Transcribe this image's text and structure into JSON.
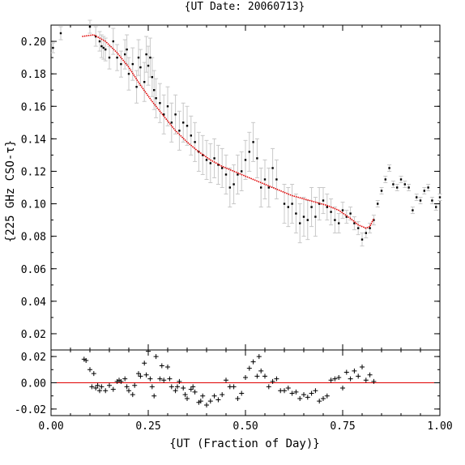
{
  "chart_data": [
    {
      "type": "scatter",
      "title": "{UT Date: 20060713}",
      "xlabel": "",
      "ylabel": "{225 GHz CSO-τ}",
      "xlim": [
        0.0,
        1.0
      ],
      "ylim": [
        0.01,
        0.21
      ],
      "yticks": [
        "0.02",
        "0.04",
        "0.06",
        "0.08",
        "0.10",
        "0.12",
        "0.14",
        "0.16",
        "0.18",
        "0.20"
      ],
      "grid": false,
      "series": [
        {
          "kind": "points-with-errorbars",
          "x": [
            0.005,
            0.025,
            0.1,
            0.115,
            0.125,
            0.13,
            0.135,
            0.14,
            0.15,
            0.16,
            0.17,
            0.18,
            0.19,
            0.195,
            0.2,
            0.21,
            0.22,
            0.225,
            0.23,
            0.24,
            0.245,
            0.25,
            0.255,
            0.26,
            0.265,
            0.27,
            0.28,
            0.29,
            0.3,
            0.31,
            0.32,
            0.33,
            0.34,
            0.35,
            0.36,
            0.37,
            0.38,
            0.39,
            0.4,
            0.41,
            0.42,
            0.43,
            0.44,
            0.45,
            0.46,
            0.47,
            0.48,
            0.49,
            0.5,
            0.51,
            0.52,
            0.53,
            0.54,
            0.55,
            0.56,
            0.57,
            0.58,
            0.6,
            0.61,
            0.62,
            0.63,
            0.64,
            0.65,
            0.66,
            0.67,
            0.68,
            0.69,
            0.7,
            0.71,
            0.72,
            0.73,
            0.74,
            0.75,
            0.76,
            0.77,
            0.78,
            0.79,
            0.8,
            0.81,
            0.82,
            0.83,
            0.84,
            0.85,
            0.86,
            0.87,
            0.88,
            0.89,
            0.9,
            0.91,
            0.92,
            0.93,
            0.94,
            0.95,
            0.96,
            0.97,
            0.98,
            0.99,
            1.0
          ],
          "y": [
            0.196,
            0.205,
            0.209,
            0.203,
            0.2,
            0.197,
            0.196,
            0.195,
            0.19,
            0.2,
            0.19,
            0.186,
            0.192,
            0.195,
            0.18,
            0.186,
            0.172,
            0.19,
            0.184,
            0.175,
            0.192,
            0.185,
            0.19,
            0.178,
            0.17,
            0.165,
            0.162,
            0.155,
            0.16,
            0.15,
            0.155,
            0.145,
            0.15,
            0.148,
            0.142,
            0.138,
            0.132,
            0.13,
            0.127,
            0.125,
            0.128,
            0.124,
            0.122,
            0.118,
            0.11,
            0.112,
            0.118,
            0.12,
            0.127,
            0.132,
            0.138,
            0.128,
            0.11,
            0.115,
            0.11,
            0.122,
            0.115,
            0.1,
            0.098,
            0.1,
            0.094,
            0.088,
            0.092,
            0.09,
            0.098,
            0.092,
            0.1,
            0.102,
            0.098,
            0.095,
            0.09,
            0.088,
            0.096,
            0.092,
            0.094,
            0.088,
            0.085,
            0.078,
            0.082,
            0.085,
            0.09,
            0.1,
            0.108,
            0.115,
            0.122,
            0.112,
            0.11,
            0.115,
            0.112,
            0.11,
            0.096,
            0.104,
            0.102,
            0.108,
            0.11,
            0.102,
            0.098,
            0.104
          ],
          "yerr": [
            0.003,
            0.004,
            0.004,
            0.006,
            0.006,
            0.007,
            0.007,
            0.007,
            0.007,
            0.008,
            0.008,
            0.008,
            0.009,
            0.009,
            0.01,
            0.01,
            0.01,
            0.011,
            0.011,
            0.012,
            0.011,
            0.012,
            0.012,
            0.012,
            0.012,
            0.012,
            0.012,
            0.012,
            0.012,
            0.012,
            0.012,
            0.012,
            0.012,
            0.012,
            0.012,
            0.012,
            0.012,
            0.012,
            0.012,
            0.012,
            0.012,
            0.012,
            0.012,
            0.012,
            0.012,
            0.012,
            0.012,
            0.012,
            0.012,
            0.012,
            0.012,
            0.012,
            0.012,
            0.012,
            0.012,
            0.012,
            0.012,
            0.012,
            0.012,
            0.012,
            0.012,
            0.012,
            0.012,
            0.012,
            0.012,
            0.012,
            0.01,
            0.008,
            0.008,
            0.008,
            0.008,
            0.006,
            0.005,
            0.004,
            0.004,
            0.004,
            0.004,
            0.004,
            0.003,
            0.003,
            0.003,
            0.002,
            0.002,
            0.002,
            0.002,
            0.002,
            0.002,
            0.002,
            0.002,
            0.002,
            0.002,
            0.002,
            0.002,
            0.002,
            0.002,
            0.002,
            0.002,
            0.002
          ]
        },
        {
          "kind": "fit-line",
          "color": "#e00000",
          "x": [
            0.08,
            0.11,
            0.14,
            0.17,
            0.2,
            0.23,
            0.26,
            0.29,
            0.32,
            0.35,
            0.38,
            0.41,
            0.44,
            0.47,
            0.5,
            0.53,
            0.56,
            0.59,
            0.62,
            0.65,
            0.68,
            0.71,
            0.74,
            0.77,
            0.79,
            0.8,
            0.81,
            0.82,
            0.83
          ],
          "y": [
            0.203,
            0.204,
            0.2,
            0.193,
            0.184,
            0.173,
            0.163,
            0.154,
            0.145,
            0.138,
            0.132,
            0.127,
            0.123,
            0.12,
            0.117,
            0.114,
            0.111,
            0.108,
            0.105,
            0.103,
            0.101,
            0.099,
            0.096,
            0.091,
            0.087,
            0.086,
            0.085,
            0.086,
            0.091
          ]
        }
      ]
    },
    {
      "type": "scatter",
      "title": "",
      "xlabel": "{UT (Fraction of Day)}",
      "ylabel": "",
      "xlim": [
        0.0,
        1.0
      ],
      "ylim": [
        -0.025,
        0.025
      ],
      "xticks": [
        "0.00",
        "0.25",
        "0.50",
        "0.75",
        "1.00"
      ],
      "yticks": [
        "-0.02",
        "0.00",
        "0.02"
      ],
      "grid": false,
      "series": [
        {
          "kind": "residuals",
          "marker": "+",
          "x": [
            0.085,
            0.09,
            0.1,
            0.105,
            0.11,
            0.115,
            0.12,
            0.125,
            0.13,
            0.14,
            0.15,
            0.16,
            0.17,
            0.175,
            0.18,
            0.19,
            0.195,
            0.2,
            0.21,
            0.215,
            0.225,
            0.23,
            0.24,
            0.245,
            0.25,
            0.255,
            0.26,
            0.265,
            0.27,
            0.28,
            0.285,
            0.29,
            0.3,
            0.305,
            0.31,
            0.32,
            0.325,
            0.33,
            0.34,
            0.345,
            0.35,
            0.36,
            0.365,
            0.37,
            0.38,
            0.385,
            0.39,
            0.4,
            0.41,
            0.42,
            0.43,
            0.44,
            0.45,
            0.46,
            0.47,
            0.48,
            0.49,
            0.5,
            0.51,
            0.52,
            0.53,
            0.535,
            0.54,
            0.55,
            0.56,
            0.57,
            0.58,
            0.59,
            0.6,
            0.61,
            0.62,
            0.63,
            0.64,
            0.65,
            0.66,
            0.67,
            0.68,
            0.69,
            0.7,
            0.71,
            0.72,
            0.73,
            0.74,
            0.75,
            0.76,
            0.77,
            0.78,
            0.79,
            0.8,
            0.81,
            0.82,
            0.83
          ],
          "y": [
            0.018,
            0.017,
            0.01,
            -0.003,
            0.007,
            -0.004,
            -0.002,
            -0.006,
            -0.003,
            -0.006,
            -0.002,
            -0.005,
            0.001,
            0.002,
            0.001,
            0.003,
            -0.003,
            -0.006,
            -0.009,
            -0.002,
            0.007,
            0.005,
            0.015,
            0.006,
            0.024,
            0.003,
            -0.003,
            -0.01,
            0.02,
            0.003,
            0.013,
            0.002,
            0.012,
            0.003,
            -0.003,
            -0.006,
            -0.003,
            0.001,
            -0.004,
            -0.009,
            -0.012,
            -0.005,
            -0.003,
            -0.007,
            -0.015,
            -0.014,
            -0.01,
            -0.017,
            -0.014,
            -0.01,
            -0.013,
            -0.009,
            0.002,
            -0.003,
            -0.003,
            -0.012,
            -0.008,
            0.004,
            0.011,
            0.016,
            0.005,
            0.02,
            0.009,
            0.005,
            -0.003,
            0.001,
            0.003,
            -0.006,
            -0.006,
            -0.004,
            -0.008,
            -0.007,
            -0.012,
            -0.009,
            -0.011,
            -0.008,
            -0.006,
            -0.014,
            -0.012,
            -0.01,
            0.002,
            0.003,
            0.004,
            -0.004,
            0.008,
            0.003,
            0.009,
            0.005,
            0.012,
            0.002,
            0.006,
            0.001
          ],
          "reference_line": 0.0,
          "reference_color": "#e00000"
        }
      ]
    }
  ]
}
